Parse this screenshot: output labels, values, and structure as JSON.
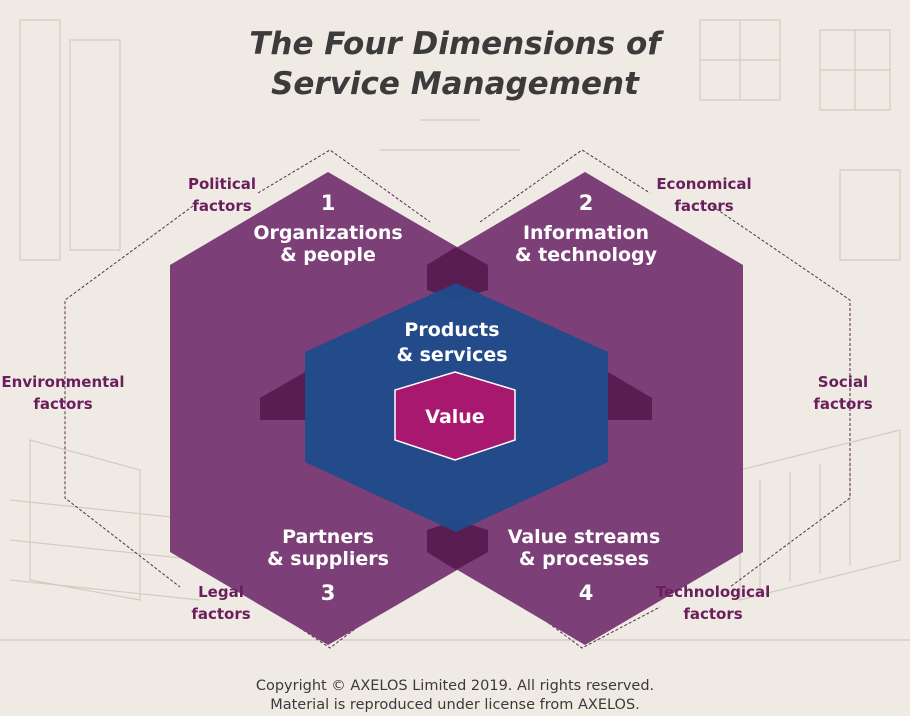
{
  "title": {
    "line1": "The Four Dimensions of",
    "line2": "Service Management"
  },
  "dimensions": [
    {
      "number": "1",
      "line1": "Organizations",
      "line2": "& people"
    },
    {
      "number": "2",
      "line1": "Information",
      "line2": "& technology"
    },
    {
      "number": "3",
      "line1": "Partners",
      "line2": "& suppliers"
    },
    {
      "number": "4",
      "line1": "Value streams",
      "line2": "& processes"
    }
  ],
  "center": {
    "line1": "Products",
    "line2": "& services"
  },
  "core": {
    "label": "Value"
  },
  "factors": {
    "political": {
      "line1": "Political",
      "line2": "factors"
    },
    "economical": {
      "line1": "Economical",
      "line2": "factors"
    },
    "environmental": {
      "line1": "Environmental",
      "line2": "factors"
    },
    "social": {
      "line1": "Social",
      "line2": "factors"
    },
    "legal": {
      "line1": "Legal",
      "line2": "factors"
    },
    "technological": {
      "line1": "Technological",
      "line2": "factors"
    }
  },
  "copyright": {
    "line1": "Copyright © AXELOS Limited 2019. All rights reserved.",
    "line2": "Material is reproduced under license from AXELOS."
  },
  "colors": {
    "background": "#efebe4",
    "dimension_fill": "#7d3f78",
    "overlap_fill": "#5a1d52",
    "center_fill": "#1f4b8a",
    "value_fill": "#a8186f",
    "factor_text": "#6b1e5c",
    "outline": "#5a2a50"
  }
}
